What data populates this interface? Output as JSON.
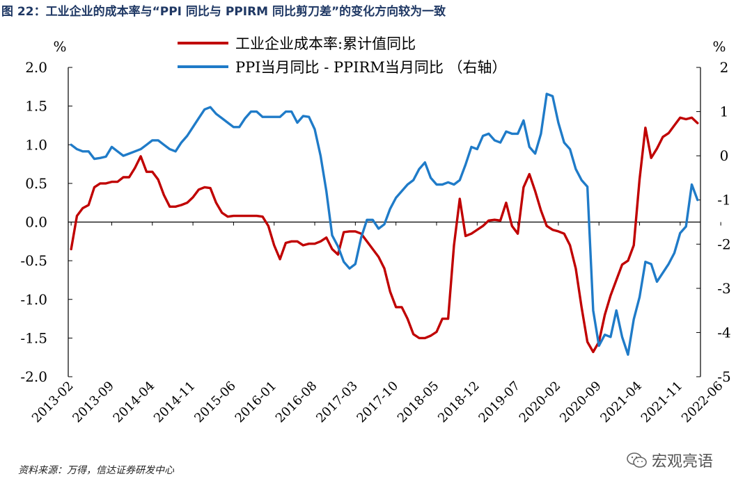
{
  "figure_title": "图 22：工业企业的成本率与“PPI 同比与 PPIRM 同比剪刀差”的变化方向较为一致",
  "source_note": "资料来源：万得，信达证券研发中心",
  "watermark": "宏观亮语",
  "colors": {
    "red": "#c00000",
    "blue": "#1f7bc8",
    "axis": "#000000",
    "title": "#1f3864"
  },
  "chart_data": {
    "type": "line",
    "left_unit": "%",
    "right_unit": "%",
    "left_axis": {
      "ylim": [
        -2.0,
        2.0
      ],
      "ticks": [
        2.0,
        1.5,
        1.0,
        0.5,
        0.0,
        -0.5,
        -1.0,
        -1.5,
        -2.0
      ],
      "tick_labels": [
        "2.0",
        "1.5",
        "1.0",
        "0.5",
        "0.0",
        "-0.5",
        "-1.0",
        "-1.5",
        "-2.0"
      ]
    },
    "right_axis": {
      "ylim": [
        -5,
        2
      ],
      "ticks": [
        2,
        1,
        0,
        -1,
        -2,
        -3,
        -4,
        -5
      ],
      "tick_labels": [
        "2",
        "1",
        "0",
        "-1",
        "-2",
        "-3",
        "-4",
        "-5"
      ]
    },
    "x_start": "2013-02",
    "x_end": "2022-11",
    "x_tick_labels": [
      "2013-02",
      "2013-09",
      "2014-04",
      "2014-11",
      "2015-06",
      "2016-01",
      "2016-08",
      "2017-03",
      "2017-10",
      "2018-05",
      "2018-12",
      "2019-07",
      "2020-02",
      "2020-09",
      "2021-04",
      "2021-11",
      "2022-06"
    ],
    "x_tick_interval_months": 7,
    "grid": false,
    "legend_placement": "top-center",
    "series": [
      {
        "name": "工业企业成本率:累计值同比",
        "axis": "left",
        "color": "#c00000",
        "points": [
          [
            0,
            -0.35
          ],
          [
            1,
            0.08
          ],
          [
            2,
            0.18
          ],
          [
            3,
            0.22
          ],
          [
            4,
            0.45
          ],
          [
            5,
            0.5
          ],
          [
            6,
            0.5
          ],
          [
            7,
            0.52
          ],
          [
            8,
            0.52
          ],
          [
            9,
            0.58
          ],
          [
            10,
            0.58
          ],
          [
            11,
            0.7
          ],
          [
            12,
            0.85
          ],
          [
            13,
            0.65
          ],
          [
            14,
            0.65
          ],
          [
            15,
            0.55
          ],
          [
            16,
            0.35
          ],
          [
            17,
            0.2
          ],
          [
            18,
            0.2
          ],
          [
            19,
            0.22
          ],
          [
            20,
            0.25
          ],
          [
            21,
            0.32
          ],
          [
            22,
            0.42
          ],
          [
            23,
            0.45
          ],
          [
            24,
            0.44
          ],
          [
            25,
            0.25
          ],
          [
            26,
            0.12
          ],
          [
            27,
            0.07
          ],
          [
            28,
            0.08
          ],
          [
            29,
            0.08
          ],
          [
            30,
            0.08
          ],
          [
            31,
            0.08
          ],
          [
            32,
            0.08
          ],
          [
            33,
            0.07
          ],
          [
            34,
            -0.05
          ],
          [
            35,
            -0.3
          ],
          [
            36,
            -0.48
          ],
          [
            37,
            -0.27
          ],
          [
            38,
            -0.25
          ],
          [
            39,
            -0.25
          ],
          [
            40,
            -0.3
          ],
          [
            41,
            -0.28
          ],
          [
            42,
            -0.28
          ],
          [
            43,
            -0.25
          ],
          [
            44,
            -0.2
          ],
          [
            45,
            -0.35
          ],
          [
            46,
            -0.42
          ],
          [
            47,
            -0.13
          ],
          [
            48,
            -0.12
          ],
          [
            49,
            -0.12
          ],
          [
            50,
            -0.15
          ],
          [
            51,
            -0.25
          ],
          [
            52,
            -0.35
          ],
          [
            53,
            -0.45
          ],
          [
            54,
            -0.6
          ],
          [
            55,
            -0.9
          ],
          [
            56,
            -1.1
          ],
          [
            57,
            -1.1
          ],
          [
            58,
            -1.25
          ],
          [
            59,
            -1.45
          ],
          [
            60,
            -1.5
          ],
          [
            61,
            -1.5
          ],
          [
            62,
            -1.47
          ],
          [
            63,
            -1.42
          ],
          [
            64,
            -1.25
          ],
          [
            65,
            -1.25
          ],
          [
            66,
            -0.3
          ],
          [
            67,
            0.3
          ],
          [
            68,
            -0.18
          ],
          [
            69,
            -0.15
          ],
          [
            70,
            -0.1
          ],
          [
            71,
            -0.05
          ],
          [
            72,
            0.02
          ],
          [
            73,
            0.03
          ],
          [
            74,
            0.02
          ],
          [
            75,
            0.25
          ],
          [
            76,
            -0.05
          ],
          [
            77,
            -0.15
          ],
          [
            78,
            0.45
          ],
          [
            79,
            0.62
          ],
          [
            80,
            0.4
          ],
          [
            81,
            0.15
          ],
          [
            82,
            -0.05
          ],
          [
            83,
            -0.1
          ],
          [
            84,
            -0.12
          ],
          [
            85,
            -0.15
          ],
          [
            86,
            -0.3
          ],
          [
            87,
            -0.6
          ],
          [
            88,
            -1.1
          ],
          [
            89,
            -1.55
          ],
          [
            90,
            -1.68
          ],
          [
            91,
            -1.55
          ],
          [
            92,
            -1.2
          ],
          [
            93,
            -0.95
          ],
          [
            94,
            -0.75
          ],
          [
            95,
            -0.55
          ],
          [
            96,
            -0.5
          ],
          [
            97,
            -0.3
          ],
          [
            98,
            0.55
          ],
          [
            99,
            1.22
          ],
          [
            100,
            0.83
          ],
          [
            101,
            0.95
          ],
          [
            102,
            1.1
          ],
          [
            103,
            1.15
          ],
          [
            104,
            1.25
          ],
          [
            105,
            1.35
          ],
          [
            106,
            1.33
          ],
          [
            107,
            1.35
          ],
          [
            108,
            1.28
          ]
        ]
      },
      {
        "name": "PPI当月同比 - PPIRM当月同比 （右轴）",
        "axis": "right",
        "color": "#1f7bc8",
        "points": [
          [
            0,
            0.25
          ],
          [
            1,
            0.15
          ],
          [
            2,
            0.1
          ],
          [
            3,
            0.1
          ],
          [
            4,
            -0.07
          ],
          [
            5,
            -0.05
          ],
          [
            6,
            -0.02
          ],
          [
            7,
            0.2
          ],
          [
            8,
            0.1
          ],
          [
            9,
            0.0
          ],
          [
            10,
            0.05
          ],
          [
            11,
            0.1
          ],
          [
            12,
            0.15
          ],
          [
            13,
            0.25
          ],
          [
            14,
            0.35
          ],
          [
            15,
            0.35
          ],
          [
            16,
            0.25
          ],
          [
            17,
            0.15
          ],
          [
            18,
            0.1
          ],
          [
            19,
            0.3
          ],
          [
            20,
            0.45
          ],
          [
            21,
            0.65
          ],
          [
            22,
            0.85
          ],
          [
            23,
            1.05
          ],
          [
            24,
            1.1
          ],
          [
            25,
            0.95
          ],
          [
            26,
            0.85
          ],
          [
            27,
            0.75
          ],
          [
            28,
            0.65
          ],
          [
            29,
            0.65
          ],
          [
            30,
            0.85
          ],
          [
            31,
            1.0
          ],
          [
            32,
            1.0
          ],
          [
            33,
            0.88
          ],
          [
            34,
            0.88
          ],
          [
            35,
            0.88
          ],
          [
            36,
            0.88
          ],
          [
            37,
            1.0
          ],
          [
            38,
            1.0
          ],
          [
            39,
            0.75
          ],
          [
            40,
            0.9
          ],
          [
            41,
            0.88
          ],
          [
            42,
            0.6
          ],
          [
            43,
            0.0
          ],
          [
            44,
            -0.8
          ],
          [
            45,
            -1.8
          ],
          [
            46,
            -2.05
          ],
          [
            47,
            -2.4
          ],
          [
            48,
            -2.55
          ],
          [
            49,
            -2.45
          ],
          [
            50,
            -1.85
          ],
          [
            51,
            -1.45
          ],
          [
            52,
            -1.45
          ],
          [
            53,
            -1.65
          ],
          [
            54,
            -1.55
          ],
          [
            55,
            -1.2
          ],
          [
            56,
            -0.95
          ],
          [
            57,
            -0.8
          ],
          [
            58,
            -0.65
          ],
          [
            59,
            -0.55
          ],
          [
            60,
            -0.3
          ],
          [
            61,
            -0.15
          ],
          [
            62,
            -0.5
          ],
          [
            63,
            -0.65
          ],
          [
            64,
            -0.65
          ],
          [
            65,
            -0.6
          ],
          [
            66,
            -0.65
          ],
          [
            67,
            -0.55
          ],
          [
            68,
            -0.2
          ],
          [
            69,
            0.2
          ],
          [
            70,
            0.15
          ],
          [
            71,
            0.45
          ],
          [
            72,
            0.5
          ],
          [
            73,
            0.35
          ],
          [
            74,
            0.3
          ],
          [
            75,
            0.55
          ],
          [
            76,
            0.5
          ],
          [
            77,
            0.5
          ],
          [
            78,
            0.8
          ],
          [
            79,
            0.2
          ],
          [
            80,
            0.05
          ],
          [
            81,
            0.5
          ],
          [
            82,
            1.4
          ],
          [
            83,
            1.35
          ],
          [
            84,
            0.75
          ],
          [
            85,
            0.3
          ],
          [
            86,
            0.15
          ],
          [
            87,
            -0.3
          ],
          [
            88,
            -0.55
          ],
          [
            89,
            -0.7
          ],
          [
            90,
            -3.5
          ],
          [
            91,
            -4.3
          ],
          [
            92,
            -4.05
          ],
          [
            93,
            -4.1
          ],
          [
            94,
            -3.5
          ],
          [
            95,
            -4.1
          ],
          [
            96,
            -4.5
          ],
          [
            97,
            -3.7
          ],
          [
            98,
            -3.2
          ],
          [
            99,
            -2.4
          ],
          [
            100,
            -2.45
          ],
          [
            101,
            -2.85
          ],
          [
            102,
            -2.65
          ],
          [
            103,
            -2.45
          ],
          [
            104,
            -2.2
          ],
          [
            105,
            -1.75
          ],
          [
            106,
            -1.6
          ],
          [
            107,
            -0.65
          ],
          [
            108,
            -1.0
          ]
        ]
      }
    ]
  }
}
